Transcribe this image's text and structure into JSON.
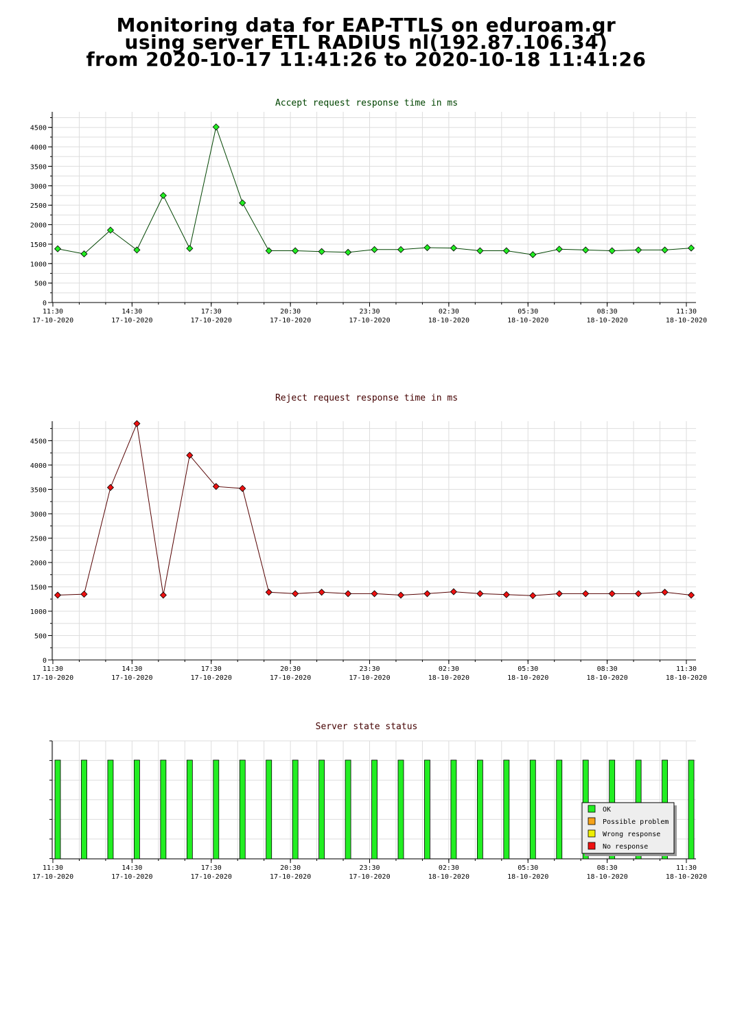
{
  "header": {
    "line1": "Monitoring data for EAP-TTLS on eduroam.gr",
    "line2": "using server ETL RADIUS nl(192.87.106.34)",
    "line3": "from 2020-10-17 11:41:26 to 2020-10-18 11:41:26"
  },
  "time_ticks": [
    {
      "time": "11:30",
      "date": "17-10-2020"
    },
    {
      "time": "14:30",
      "date": "17-10-2020"
    },
    {
      "time": "17:30",
      "date": "17-10-2020"
    },
    {
      "time": "20:30",
      "date": "17-10-2020"
    },
    {
      "time": "23:30",
      "date": "17-10-2020"
    },
    {
      "time": "02:30",
      "date": "18-10-2020"
    },
    {
      "time": "05:30",
      "date": "18-10-2020"
    },
    {
      "time": "08:30",
      "date": "18-10-2020"
    },
    {
      "time": "11:30",
      "date": "18-10-2020"
    }
  ],
  "colors": {
    "accept_marker": "#22ee22",
    "accept_line": "#004400",
    "accept_title": "#004400",
    "reject_marker": "#ee1111",
    "reject_line": "#550000",
    "reject_title": "#440000",
    "status_title": "#440000",
    "ok": "#22ee22",
    "possible_problem": "#f5a31a",
    "wrong_response": "#eeee00",
    "no_response": "#ee1111",
    "grid": "#dddddd"
  },
  "chart_data": [
    {
      "type": "line",
      "title": "Accept request response time in ms",
      "xlabel": "",
      "ylabel": "",
      "ylim": [
        0,
        4900
      ],
      "yticks": [
        0,
        500,
        1000,
        1500,
        2000,
        2500,
        3000,
        3500,
        4000,
        4500
      ],
      "grid": true,
      "x": [
        "11:41",
        "12:41",
        "13:41",
        "14:41",
        "15:41",
        "16:41",
        "17:41",
        "18:41",
        "19:41",
        "20:41",
        "21:41",
        "22:41",
        "23:41",
        "00:41",
        "01:41",
        "02:41",
        "03:41",
        "04:41",
        "05:41",
        "06:41",
        "07:41",
        "08:41",
        "09:41",
        "10:41",
        "11:41"
      ],
      "values": [
        1380,
        1250,
        1860,
        1350,
        2750,
        1390,
        4510,
        2560,
        1330,
        1330,
        1310,
        1290,
        1360,
        1360,
        1410,
        1400,
        1330,
        1330,
        1230,
        1370,
        1350,
        1330,
        1350,
        1350,
        1400
      ]
    },
    {
      "type": "line",
      "title": "Reject request response time in ms",
      "xlabel": "",
      "ylabel": "",
      "ylim": [
        0,
        4900
      ],
      "yticks": [
        0,
        500,
        1000,
        1500,
        2000,
        2500,
        3000,
        3500,
        4000,
        4500
      ],
      "grid": true,
      "x": [
        "11:41",
        "12:41",
        "13:41",
        "14:41",
        "15:41",
        "16:41",
        "17:41",
        "18:41",
        "19:41",
        "20:41",
        "21:41",
        "22:41",
        "23:41",
        "00:41",
        "01:41",
        "02:41",
        "03:41",
        "04:41",
        "05:41",
        "06:41",
        "07:41",
        "08:41",
        "09:41",
        "10:41",
        "11:41"
      ],
      "values": [
        1330,
        1350,
        3540,
        4850,
        1330,
        4200,
        3560,
        3520,
        1390,
        1360,
        1390,
        1360,
        1360,
        1330,
        1360,
        1400,
        1360,
        1340,
        1320,
        1360,
        1360,
        1360,
        1360,
        1390,
        1330
      ]
    },
    {
      "type": "bar",
      "title": "Server state status",
      "grid": true,
      "legend_position": "bottom-right",
      "legend": [
        "OK",
        "Possible problem",
        "Wrong response",
        "No response"
      ],
      "x": [
        "11:41",
        "12:41",
        "13:41",
        "14:41",
        "15:41",
        "16:41",
        "17:41",
        "18:41",
        "19:41",
        "20:41",
        "21:41",
        "22:41",
        "23:41",
        "00:41",
        "01:41",
        "02:41",
        "03:41",
        "04:41",
        "05:41",
        "06:41",
        "07:41",
        "08:41",
        "09:41",
        "10:41",
        "11:41"
      ],
      "status": [
        "OK",
        "OK",
        "OK",
        "OK",
        "OK",
        "OK",
        "OK",
        "OK",
        "OK",
        "OK",
        "OK",
        "OK",
        "OK",
        "OK",
        "OK",
        "OK",
        "OK",
        "OK",
        "OK",
        "OK",
        "OK",
        "OK",
        "OK",
        "OK",
        "OK"
      ]
    }
  ]
}
